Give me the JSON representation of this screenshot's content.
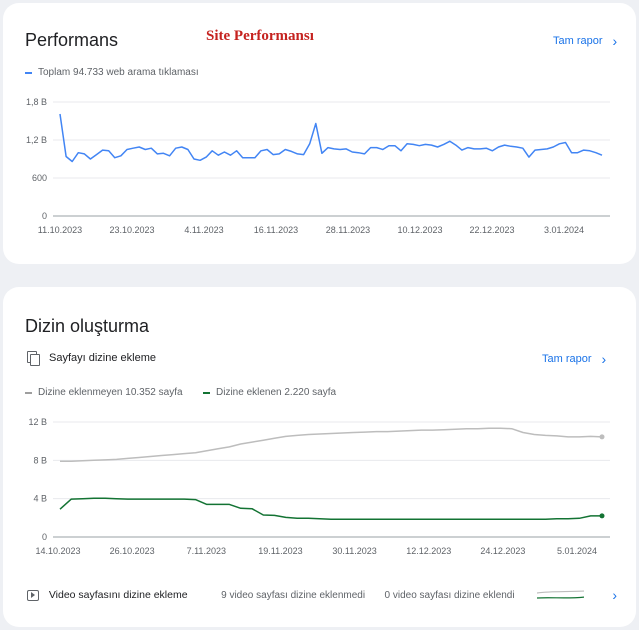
{
  "performance": {
    "title": "Performans",
    "overlay_title": "Site Performansı",
    "report_label": "Tam rapor",
    "legend_label": "Toplam 94.733 web arama tıklaması",
    "chart_data": {
      "type": "line",
      "title": "",
      "xlabel": "",
      "ylabel": "",
      "x_ticks": [
        "11.10.2023",
        "23.10.2023",
        "4.11.2023",
        "16.11.2023",
        "28.11.2023",
        "10.12.2023",
        "22.12.2023",
        "3.01.2024"
      ],
      "y_ticks": [
        "0",
        "600",
        "1,2 B",
        "1,8 B"
      ],
      "ylim": [
        0,
        1800
      ],
      "grid": true,
      "series": [
        {
          "name": "Toplam 94.733 web arama tıklaması",
          "color": "#4285f4",
          "x_start": "11.10.2023",
          "x_end": "17.01.2024",
          "values": [
            1610,
            940,
            860,
            1000,
            980,
            900,
            970,
            1040,
            1030,
            920,
            950,
            1050,
            1070,
            1090,
            1050,
            1070,
            980,
            990,
            950,
            1070,
            1090,
            1050,
            900,
            880,
            930,
            1030,
            960,
            1010,
            960,
            1030,
            920,
            920,
            920,
            1030,
            1050,
            970,
            980,
            1050,
            1020,
            980,
            970,
            1140,
            1460,
            990,
            1080,
            1060,
            1050,
            1060,
            1010,
            1000,
            980,
            1080,
            1080,
            1050,
            1110,
            1110,
            1030,
            1140,
            1130,
            1110,
            1130,
            1120,
            1090,
            1130,
            1180,
            1120,
            1040,
            1080,
            1060,
            1060,
            1070,
            1030,
            1090,
            1120,
            1100,
            1090,
            1070,
            930,
            1040,
            1050,
            1060,
            1090,
            1140,
            1160,
            1000,
            1000,
            1040,
            1030,
            1000,
            960
          ]
        }
      ]
    }
  },
  "indexing": {
    "title": "Dizin oluşturma",
    "pages_label": "Sayfayı dizine ekleme",
    "report_label": "Tam rapor",
    "legend_not_indexed": "Dizine eklenmeyen 10.352 sayfa",
    "legend_indexed": "Dizine eklenen 2.220 sayfa",
    "chart_data": {
      "type": "line",
      "title": "",
      "xlabel": "",
      "ylabel": "",
      "x_ticks": [
        "14.10.2023",
        "26.10.2023",
        "7.11.2023",
        "19.11.2023",
        "30.11.2023",
        "12.12.2023",
        "24.12.2023",
        "5.01.2024"
      ],
      "y_ticks": [
        "0",
        "4 B",
        "8 B",
        "12 B"
      ],
      "ylim": [
        0,
        12000
      ],
      "grid": true,
      "series": [
        {
          "name": "Dizine eklenmeyen 10.352 sayfa",
          "color": "#bdbdbd",
          "x_start": "14.10.2023",
          "x_end": "10.01.2024",
          "values": [
            7900,
            7900,
            7950,
            8000,
            8050,
            8100,
            8200,
            8300,
            8400,
            8500,
            8600,
            8700,
            8800,
            9000,
            9200,
            9400,
            9700,
            9900,
            10100,
            10300,
            10500,
            10600,
            10700,
            10750,
            10800,
            10850,
            10900,
            10950,
            11000,
            11000,
            11050,
            11100,
            11150,
            11150,
            11200,
            11250,
            11300,
            11300,
            11350,
            11350,
            11300,
            10900,
            10700,
            10600,
            10550,
            10450,
            10450,
            10500,
            10450
          ]
        },
        {
          "name": "Dizine eklenen 2.220 sayfa",
          "color": "#137333",
          "x_start": "14.10.2023",
          "x_end": "10.01.2024",
          "values": [
            2900,
            3950,
            4000,
            4050,
            4050,
            4000,
            3950,
            3950,
            3950,
            3950,
            3950,
            3950,
            3900,
            3400,
            3400,
            3400,
            3000,
            2950,
            2300,
            2250,
            2050,
            1950,
            1950,
            1900,
            1850,
            1850,
            1850,
            1850,
            1850,
            1850,
            1850,
            1850,
            1850,
            1850,
            1850,
            1850,
            1850,
            1850,
            1850,
            1850,
            1850,
            1850,
            1850,
            1850,
            1900,
            1900,
            1950,
            2200,
            2200
          ]
        }
      ]
    },
    "video": {
      "label": "Video sayfasını dizine ekleme",
      "not_indexed": "9 video sayfası dizine eklenmedi",
      "indexed": "0 video sayfası dizine eklendi",
      "not_indexed_color": "#bdbdbd",
      "indexed_color": "#137333"
    }
  },
  "icons": {
    "report_chevron": "chevron-right-icon",
    "pages": "copy-pages-icon",
    "video": "video-play-icon"
  }
}
